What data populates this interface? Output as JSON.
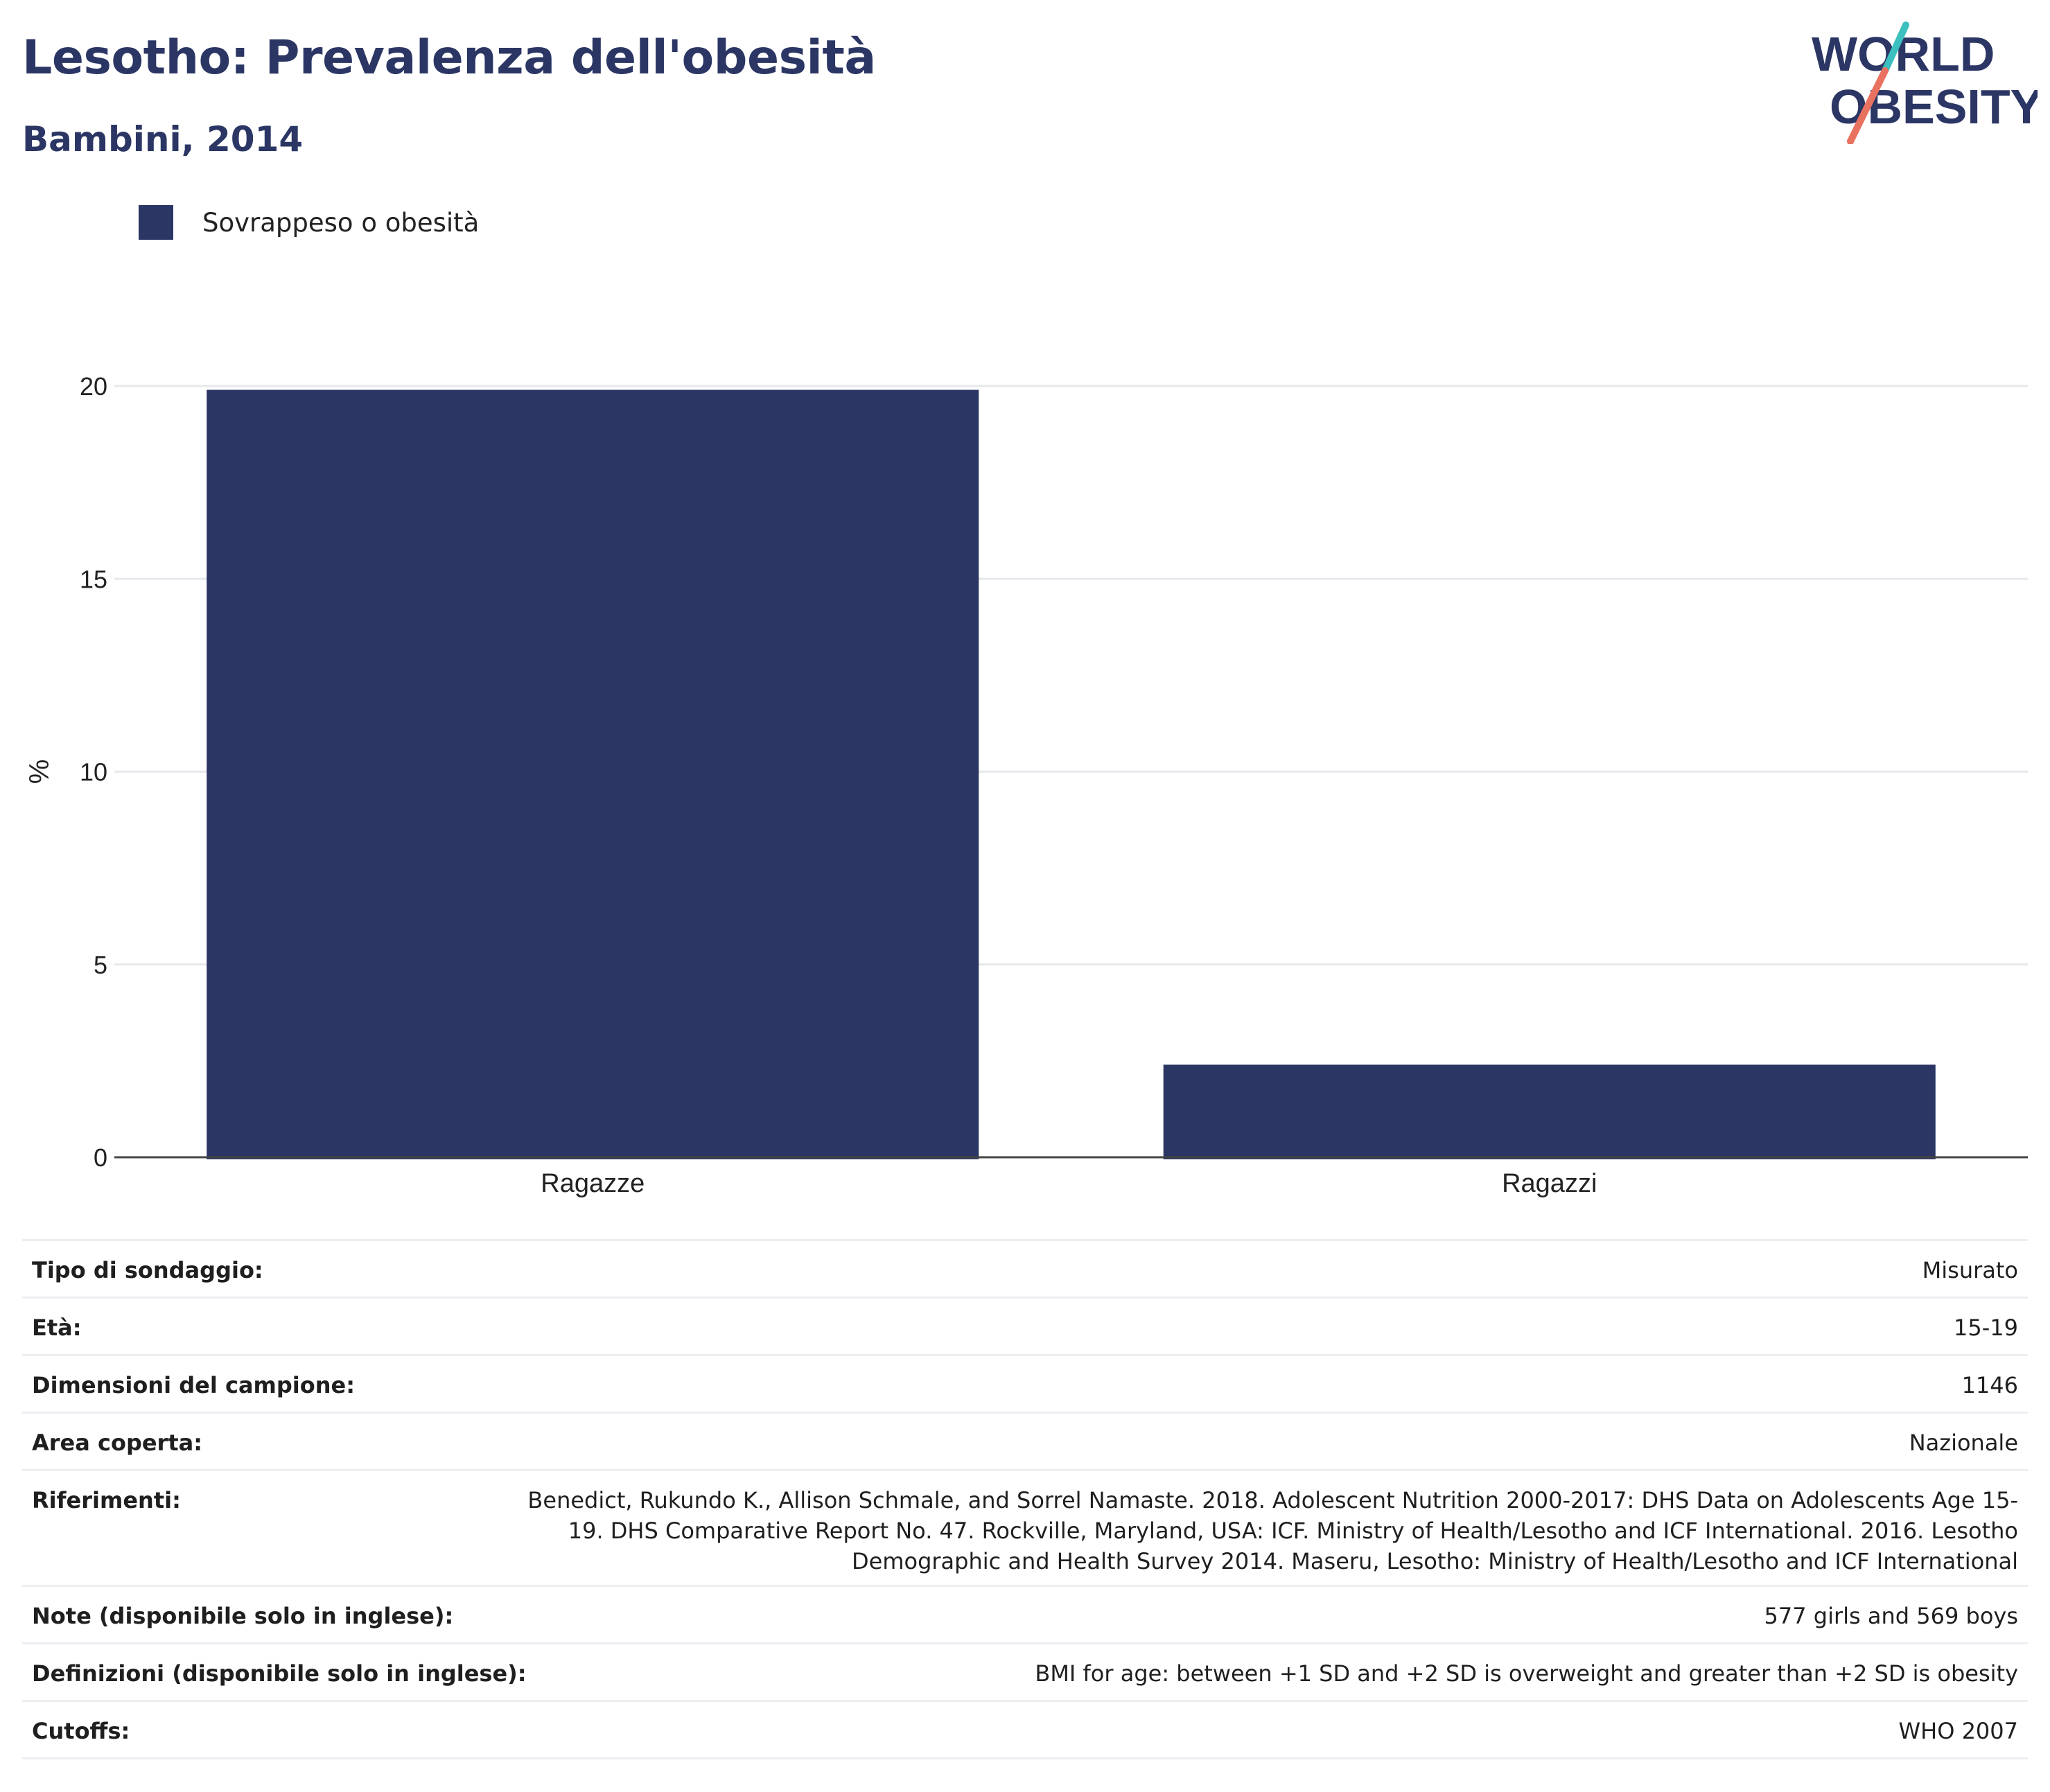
{
  "header": {
    "title": "Lesotho: Prevalenza dell'obesità",
    "subtitle": "Bambini, 2014"
  },
  "logo": {
    "line1": "WORLD",
    "line2": "OBESITY"
  },
  "chart_data": {
    "type": "bar",
    "title": "Lesotho: Prevalenza dell'obesità",
    "subtitle": "Bambini, 2014",
    "categories": [
      "Ragazze",
      "Ragazzi"
    ],
    "series": [
      {
        "name": "Sovrappeso o obesità",
        "values": [
          19.9,
          2.4
        ],
        "color": "#2b3664"
      }
    ],
    "xlabel": "",
    "ylabel": "%",
    "ylim": [
      0,
      20
    ],
    "yticks": [
      0,
      5,
      10,
      15,
      20
    ],
    "grid": true,
    "legend_position": "top-left"
  },
  "table": [
    {
      "label": "Tipo di sondaggio:",
      "value": "Misurato"
    },
    {
      "label": "Età:",
      "value": "15-19"
    },
    {
      "label": "Dimensioni del campione:",
      "value": "1146"
    },
    {
      "label": "Area coperta:",
      "value": "Nazionale"
    },
    {
      "label": "Riferimenti:",
      "value": "Benedict, Rukundo K., Allison Schmale, and Sorrel Namaste. 2018. Adolescent Nutrition 2000-2017: DHS Data on Adolescents Age 15-19. DHS Comparative Report No. 47. Rockville, Maryland, USA: ICF. Ministry of Health/Lesotho and ICF International. 2016. Lesotho Demographic and Health Survey 2014. Maseru, Lesotho: Ministry of Health/Lesotho and ICF International"
    },
    {
      "label": "Note (disponibile solo in inglese):",
      "value": "577 girls and 569 boys"
    },
    {
      "label": "Definizioni (disponibile solo in inglese):",
      "value": "BMI for age: between +1 SD and +2 SD is overweight and greater than +2 SD is obesity"
    },
    {
      "label": "Cutoffs:",
      "value": "WHO 2007"
    }
  ],
  "colors": {
    "brand": "#2b3664",
    "accent_teal": "#3bbfbf",
    "accent_coral": "#e9715f"
  }
}
